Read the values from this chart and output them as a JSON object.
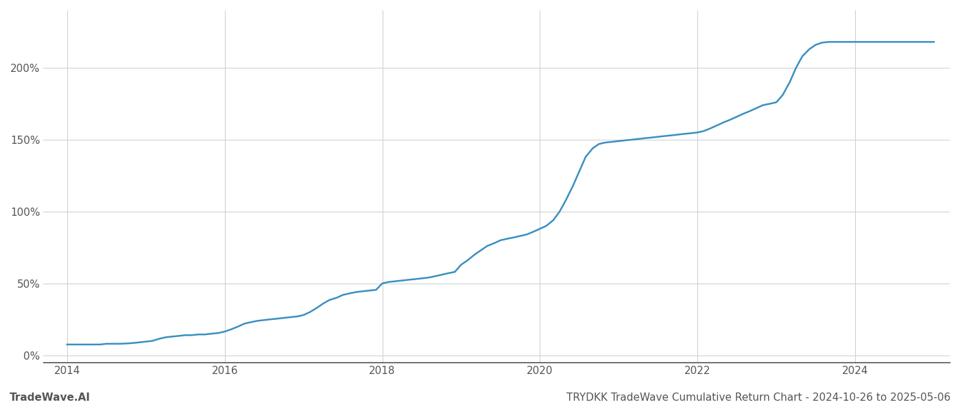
{
  "title": "TRYDKK TradeWave Cumulative Return Chart - 2024-10-26 to 2025-05-06",
  "watermark": "TradeWave.AI",
  "line_color": "#3a8fc0",
  "background_color": "#ffffff",
  "grid_color": "#cccccc",
  "data_x": [
    2014.0,
    2014.08,
    2014.17,
    2014.25,
    2014.33,
    2014.42,
    2014.5,
    2014.58,
    2014.67,
    2014.75,
    2014.83,
    2014.92,
    2015.0,
    2015.08,
    2015.17,
    2015.25,
    2015.33,
    2015.42,
    2015.5,
    2015.58,
    2015.67,
    2015.75,
    2015.83,
    2015.92,
    2016.0,
    2016.08,
    2016.17,
    2016.25,
    2016.33,
    2016.42,
    2016.5,
    2016.58,
    2016.67,
    2016.75,
    2016.83,
    2016.92,
    2017.0,
    2017.08,
    2017.17,
    2017.25,
    2017.33,
    2017.42,
    2017.5,
    2017.58,
    2017.67,
    2017.75,
    2017.83,
    2017.92,
    2018.0,
    2018.08,
    2018.17,
    2018.25,
    2018.33,
    2018.42,
    2018.5,
    2018.58,
    2018.67,
    2018.75,
    2018.83,
    2018.92,
    2019.0,
    2019.08,
    2019.17,
    2019.25,
    2019.33,
    2019.42,
    2019.5,
    2019.58,
    2019.67,
    2019.75,
    2019.83,
    2019.92,
    2020.0,
    2020.08,
    2020.17,
    2020.25,
    2020.33,
    2020.42,
    2020.5,
    2020.58,
    2020.67,
    2020.75,
    2020.83,
    2020.92,
    2021.0,
    2021.08,
    2021.17,
    2021.25,
    2021.33,
    2021.42,
    2021.5,
    2021.58,
    2021.67,
    2021.75,
    2021.83,
    2021.92,
    2022.0,
    2022.08,
    2022.17,
    2022.25,
    2022.33,
    2022.42,
    2022.5,
    2022.58,
    2022.67,
    2022.75,
    2022.83,
    2022.92,
    2023.0,
    2023.08,
    2023.17,
    2023.25,
    2023.33,
    2023.42,
    2023.5,
    2023.58,
    2023.67,
    2023.75,
    2023.83,
    2023.92,
    2024.0,
    2024.08,
    2024.17,
    2024.25,
    2024.33,
    2024.42,
    2024.5,
    2024.58,
    2024.67,
    2024.75,
    2024.83,
    2024.92,
    2025.0
  ],
  "data_y": [
    7.5,
    7.5,
    7.5,
    7.5,
    7.5,
    7.5,
    8.0,
    8.0,
    8.0,
    8.2,
    8.5,
    9.0,
    9.5,
    10.0,
    11.5,
    12.5,
    13.0,
    13.5,
    14.0,
    14.0,
    14.5,
    14.5,
    15.0,
    15.5,
    16.5,
    18.0,
    20.0,
    22.0,
    23.0,
    24.0,
    24.5,
    25.0,
    25.5,
    26.0,
    26.5,
    27.0,
    28.0,
    30.0,
    33.0,
    36.0,
    38.5,
    40.0,
    42.0,
    43.0,
    44.0,
    44.5,
    45.0,
    45.5,
    50.0,
    51.0,
    51.5,
    52.0,
    52.5,
    53.0,
    53.5,
    54.0,
    55.0,
    56.0,
    57.0,
    58.0,
    63.0,
    66.0,
    70.0,
    73.0,
    76.0,
    78.0,
    80.0,
    81.0,
    82.0,
    83.0,
    84.0,
    86.0,
    88.0,
    90.0,
    94.0,
    100.0,
    108.0,
    118.0,
    128.0,
    138.0,
    144.0,
    147.0,
    148.0,
    148.5,
    149.0,
    149.5,
    150.0,
    150.5,
    151.0,
    151.5,
    152.0,
    152.5,
    153.0,
    153.5,
    154.0,
    154.5,
    155.0,
    156.0,
    158.0,
    160.0,
    162.0,
    164.0,
    166.0,
    168.0,
    170.0,
    172.0,
    174.0,
    175.0,
    176.0,
    181.0,
    190.0,
    200.0,
    208.0,
    213.0,
    216.0,
    217.5,
    218.0,
    218.0,
    218.0,
    218.0,
    218.0,
    218.0,
    218.0,
    218.0,
    218.0,
    218.0,
    218.0,
    218.0,
    218.0,
    218.0,
    218.0,
    218.0,
    218.0
  ],
  "ylim": [
    -5,
    240
  ],
  "yticks": [
    0,
    50,
    100,
    150,
    200
  ],
  "ytick_labels": [
    "0%",
    "50%",
    "100%",
    "150%",
    "200%"
  ],
  "xlim": [
    2013.7,
    2025.2
  ],
  "xtick_years": [
    2014,
    2016,
    2018,
    2020,
    2022,
    2024
  ],
  "line_width": 1.8,
  "title_fontsize": 11,
  "tick_fontsize": 11,
  "watermark_fontsize": 11
}
